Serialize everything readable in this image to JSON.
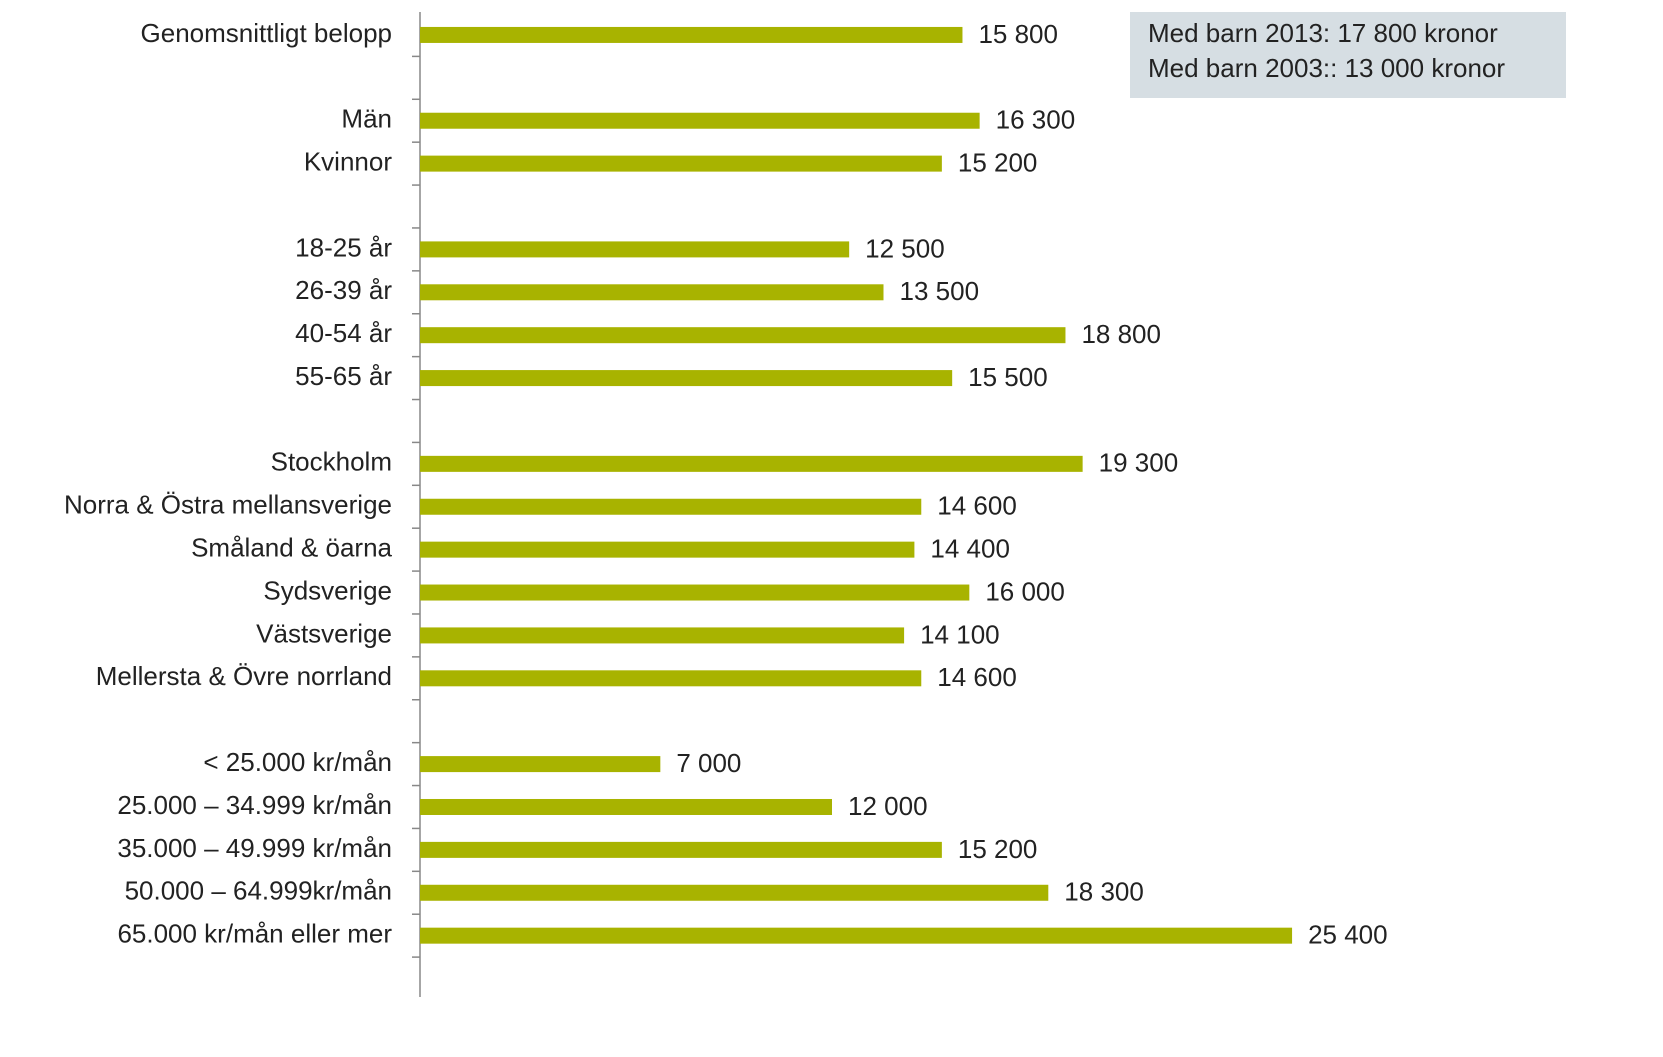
{
  "chart_data": {
    "type": "barh",
    "categories": [
      "Genomsnittligt belopp",
      null,
      "Män",
      "Kvinnor",
      null,
      "18-25 år",
      "26-39 år",
      "40-54 år",
      "55-65 år",
      null,
      "Stockholm",
      "Norra & Östra mellansverige",
      "Småland & öarna",
      "Sydsverige",
      "Västsverige",
      "Mellersta & Övre norrland",
      null,
      "< 25.000 kr/mån",
      "25.000 – 34.999 kr/mån",
      "35.000 – 49.999 kr/mån",
      "50.000 – 64.999kr/mån",
      "65.000 kr/mån eller mer",
      null
    ],
    "values": [
      15800,
      null,
      16300,
      15200,
      null,
      12500,
      13500,
      18800,
      15500,
      null,
      19300,
      14600,
      14400,
      16000,
      14100,
      14600,
      null,
      7000,
      12000,
      15200,
      18300,
      25400,
      null
    ],
    "value_labels": [
      "15 800",
      null,
      "16 300",
      "15 200",
      null,
      "12 500",
      "13 500",
      "18 800",
      "15 500",
      null,
      "19 300",
      "14 600",
      "14 400",
      "16 000",
      "14 100",
      "14 600",
      null,
      "7 000",
      "12 000",
      "15 200",
      "18 300",
      "25 400",
      null
    ],
    "color": "#a8b300",
    "xlim": [
      0,
      30000
    ],
    "annotations": [
      "Med barn 2013:  17 800 kronor",
      "Med barn 2003:: 13 000 kronor"
    ]
  }
}
